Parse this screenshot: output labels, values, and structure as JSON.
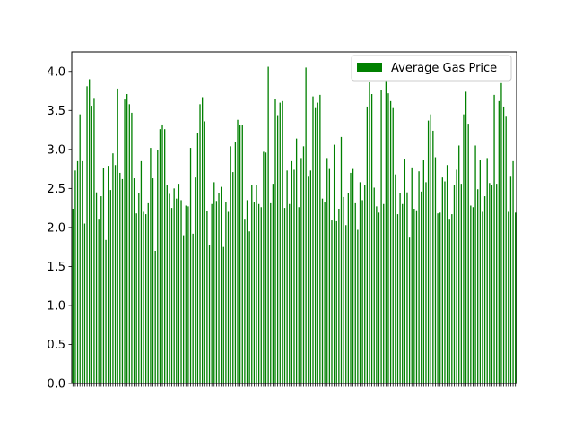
{
  "chart_data": {
    "type": "bar",
    "title": "",
    "xlabel": "",
    "ylabel": "",
    "ylim": [
      0,
      4.25
    ],
    "yticks": [
      "0.0",
      "0.5",
      "1.0",
      "1.5",
      "2.0",
      "2.5",
      "3.0",
      "3.5",
      "4.0"
    ],
    "grid": false,
    "legend_position": "top-right",
    "bar_color": "#008000",
    "series": [
      {
        "name": "Average Gas Price",
        "values": [
          2.24,
          2.73,
          2.85,
          3.45,
          2.85,
          2.05,
          3.81,
          3.9,
          3.56,
          3.66,
          2.45,
          2.1,
          2.4,
          2.76,
          1.84,
          2.79,
          2.48,
          2.95,
          2.8,
          3.78,
          2.7,
          2.62,
          3.64,
          3.71,
          3.58,
          3.47,
          2.63,
          2.18,
          2.44,
          2.85,
          2.2,
          2.17,
          2.31,
          3.02,
          2.63,
          1.7,
          2.99,
          3.26,
          3.32,
          3.26,
          2.54,
          2.43,
          2.25,
          2.5,
          2.37,
          2.56,
          2.35,
          1.9,
          2.28,
          2.27,
          3.02,
          1.92,
          2.64,
          3.21,
          3.58,
          3.67,
          3.36,
          2.21,
          1.78,
          2.3,
          2.58,
          2.34,
          2.44,
          2.52,
          1.75,
          2.32,
          2.2,
          3.04,
          2.71,
          3.09,
          3.38,
          3.31,
          3.31,
          2.1,
          2.35,
          1.95,
          2.55,
          2.32,
          2.54,
          2.3,
          2.26,
          2.97,
          2.96,
          4.06,
          2.31,
          2.56,
          3.65,
          3.44,
          3.6,
          3.62,
          2.25,
          2.73,
          2.3,
          2.85,
          2.74,
          3.14,
          2.26,
          2.89,
          3.04,
          4.05,
          2.65,
          2.73,
          3.68,
          3.53,
          3.6,
          3.7,
          2.37,
          2.32,
          2.89,
          2.75,
          2.09,
          3.06,
          2.08,
          2.24,
          3.16,
          2.39,
          2.03,
          2.44,
          2.7,
          2.75,
          2.31,
          1.97,
          2.58,
          2.35,
          2.54,
          3.55,
          3.86,
          3.71,
          2.51,
          2.27,
          2.19,
          3.76,
          2.3,
          3.89,
          3.72,
          3.62,
          3.53,
          2.68,
          2.17,
          2.44,
          2.3,
          2.88,
          2.45,
          1.87,
          2.77,
          2.24,
          2.22,
          2.72,
          2.46,
          2.86,
          2.58,
          3.37,
          3.45,
          3.24,
          2.9,
          2.18,
          2.19,
          2.64,
          2.59,
          2.8,
          2.1,
          2.17,
          2.55,
          2.74,
          3.05,
          2.56,
          3.45,
          3.74,
          3.33,
          2.28,
          2.26,
          3.05,
          2.49,
          2.86,
          2.2,
          2.4,
          2.89,
          2.57,
          2.54,
          3.7,
          2.56,
          3.62,
          3.85,
          3.55,
          3.42,
          2.2,
          2.65,
          2.85,
          2.19
        ]
      }
    ],
    "categories_note_free": true
  }
}
